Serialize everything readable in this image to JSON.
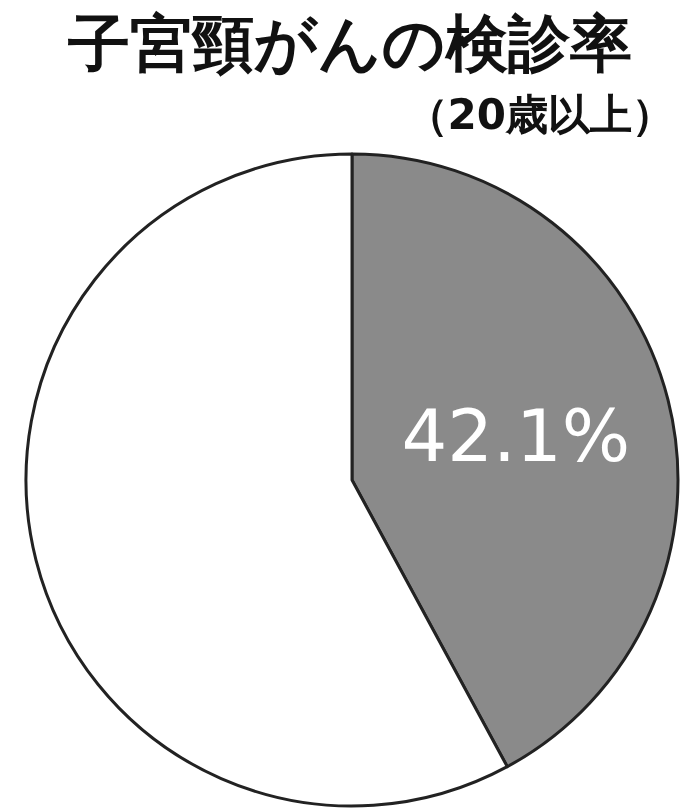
{
  "chart_data": {
    "type": "pie",
    "title": "子宮頸がんの検診率",
    "subtitle": "（20歳以上）",
    "categories": [
      null,
      null
    ],
    "values": [
      42.1,
      57.9
    ],
    "colors": [
      "#8a8a8a",
      "#ffffff"
    ],
    "value_labels": [
      "42.1%",
      null
    ]
  }
}
